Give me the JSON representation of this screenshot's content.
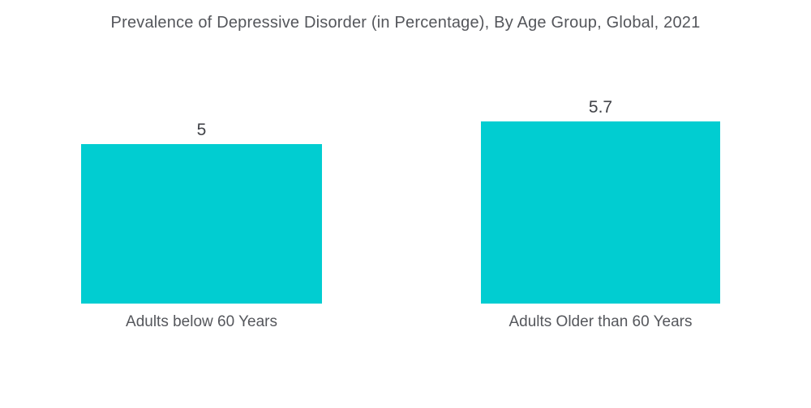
{
  "title": "Prevalence of Depressive Disorder (in Percentage), By Age Group, Global, 2021",
  "colors": {
    "bar": "#01CDD1",
    "title_text": "#54565B",
    "value_text": "#404247",
    "category_text": "#55575C",
    "background": "#FFFFFF"
  },
  "chart_data": {
    "type": "bar",
    "title": "Prevalence of Depressive Disorder (in Percentage), By Age Group, Global, 2021",
    "categories": [
      "Adults below 60 Years",
      "Adults Older than 60 Years"
    ],
    "values": [
      5,
      5.7
    ],
    "value_labels": [
      "5",
      "5.7"
    ],
    "xlabel": "",
    "ylabel": "",
    "ylim": [
      0,
      5.7
    ],
    "grid": false,
    "legend": false,
    "bar_color": "#01CDD1",
    "orientation": "vertical"
  }
}
